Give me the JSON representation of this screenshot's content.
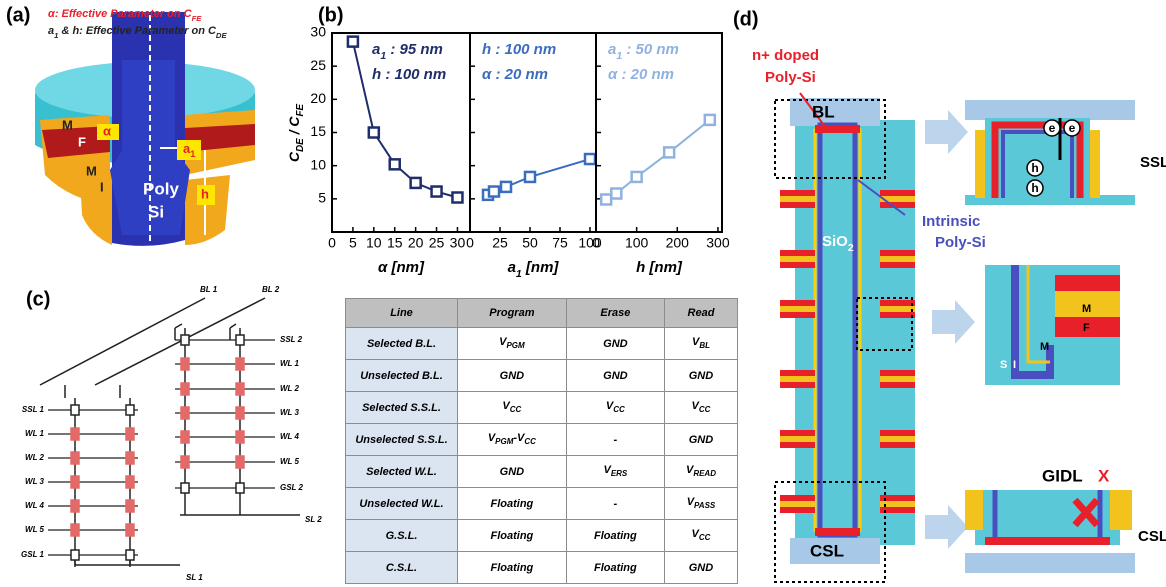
{
  "panel_labels": [
    "(a)",
    "(b)",
    "(c)",
    "(d)"
  ],
  "panel_a": {
    "legend": [
      [
        "α: Effective Parameter on C",
        "FE"
      ],
      [
        "a",
        "1",
        " & h: Effective Parameter on C",
        "DE"
      ]
    ],
    "labels": [
      "M",
      "F",
      "α",
      "M",
      "I",
      "Poly",
      "Si",
      [
        "a",
        "1"
      ],
      "h"
    ]
  },
  "chart_data": [
    {
      "type": "line",
      "annotations": [
        [
          "a",
          "1",
          " : 95 nm"
        ],
        "h : 100 nm"
      ],
      "xlabel": "α [nm]",
      "ylabel": [
        "C",
        "DE",
        " / C",
        "FE"
      ],
      "x": [
        5,
        10,
        15,
        20,
        25,
        30
      ],
      "values": [
        28.7,
        15,
        10.2,
        7.4,
        6.1,
        5.2
      ],
      "color": "#1f2d6b",
      "xlim": [
        0,
        33
      ],
      "xticks": [
        0,
        5,
        10,
        15,
        20,
        25,
        30
      ],
      "ylim": [
        0,
        30
      ],
      "yticks": [
        5,
        10,
        15,
        20,
        25,
        30
      ]
    },
    {
      "type": "line",
      "annotations": [
        "h : 100 nm",
        "α : 20 nm"
      ],
      "xlabel": [
        "a",
        "1",
        " [nm]"
      ],
      "x": [
        15,
        20,
        30,
        50,
        100
      ],
      "values": [
        5.6,
        6.1,
        6.8,
        8.3,
        11
      ],
      "color": "#3b6cc0",
      "xlim": [
        0,
        105
      ],
      "xticks": [
        0,
        25,
        50,
        75,
        100
      ]
    },
    {
      "type": "line",
      "annotations": [
        [
          "a",
          "1",
          " : 50 nm"
        ],
        "α : 20 nm"
      ],
      "xlabel": "h [nm]",
      "x": [
        25,
        50,
        100,
        180,
        280
      ],
      "values": [
        4.9,
        5.8,
        8.3,
        12,
        16.9
      ],
      "color": "#8fb2e0",
      "xlim": [
        0,
        310
      ],
      "xticks": [
        0,
        100,
        200,
        300
      ]
    }
  ],
  "panel_c": {
    "bit_lines": [
      "BL 1",
      "BL 2"
    ],
    "left_lines": [
      "SSL 1",
      "WL 1",
      "WL 2",
      "WL 3",
      "WL 4",
      "WL 5",
      "GSL 1"
    ],
    "right_lines": [
      "SSL 2",
      "WL 1",
      "WL 2",
      "WL 3",
      "WL 4",
      "WL 5",
      "GSL 2"
    ],
    "source_lines": [
      "SL 1",
      "SL 2"
    ]
  },
  "table": {
    "header": [
      "Line",
      "Program",
      "Erase",
      "Read"
    ],
    "rows": [
      [
        "Selected B.L.",
        [
          "V",
          "PGM"
        ],
        "GND",
        [
          "V",
          "BL"
        ]
      ],
      [
        "Unselected B.L.",
        "GND",
        "GND",
        "GND"
      ],
      [
        "Selected S.S.L.",
        [
          "V",
          "CC"
        ],
        [
          "V",
          "CC"
        ],
        [
          "V",
          "CC"
        ]
      ],
      [
        "Unselected S.S.L.",
        [
          "V",
          "PGM",
          "-V",
          "CC"
        ],
        "-",
        "GND"
      ],
      [
        "Selected W.L.",
        "GND",
        [
          "V",
          "ERS"
        ],
        [
          "V",
          "READ"
        ]
      ],
      [
        "Unselected W.L.",
        "Floating",
        "-",
        [
          "V",
          "PASS"
        ]
      ],
      [
        "G.S.L.",
        "Floating",
        "Floating",
        [
          "V",
          "CC"
        ]
      ],
      [
        "C.S.L.",
        "Floating",
        "Floating",
        "GND"
      ]
    ]
  },
  "panel_d": {
    "n_doped": [
      "n+ doped",
      "Poly-Si"
    ],
    "bl": "BL",
    "oxide": [
      "SiO",
      "2"
    ],
    "intrinsic": [
      "Intrinsic",
      "Poly-Si"
    ],
    "csl": "CSL",
    "ssl_inset": [
      "SSL",
      "e",
      "e",
      "h",
      "h"
    ],
    "cell_inset": [
      "M",
      "F",
      "M",
      "S",
      "I"
    ],
    "csl_inset": [
      "GIDL",
      "X",
      "CSL"
    ]
  }
}
